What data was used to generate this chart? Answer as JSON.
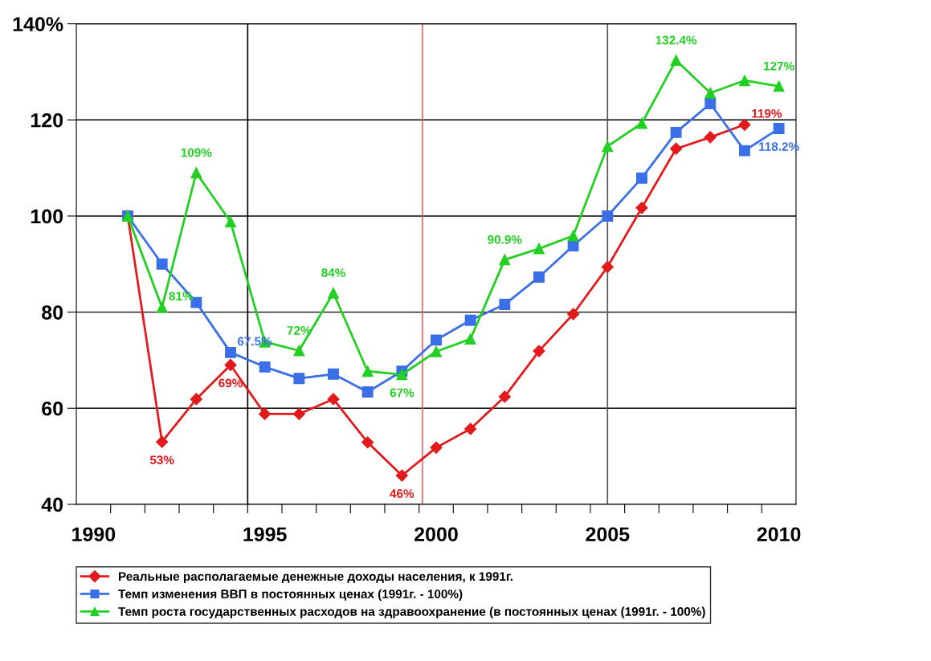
{
  "chart_data": {
    "type": "line",
    "x": [
      1991,
      1992,
      1993,
      1994,
      1995,
      1996,
      1997,
      1998,
      1999,
      2000,
      2001,
      2002,
      2003,
      2004,
      2005,
      2006,
      2007,
      2008,
      2009,
      2010
    ],
    "series": [
      {
        "name": "Реальные располагаемые денежные доходы населения, к 1991г.",
        "color": "#e31a1c",
        "marker": "diamond",
        "values": [
          100,
          53,
          61.9,
          69,
          58.8,
          58.8,
          61.9,
          52.9,
          46,
          51.8,
          55.7,
          62.4,
          71.9,
          79.6,
          89.4,
          101.7,
          114.0,
          116.4,
          119,
          null
        ]
      },
      {
        "name": "Темп изменения ВВП в постоянных ценах (1991г. - 100%)",
        "color": "#3a6fe8",
        "marker": "square",
        "values": [
          100,
          90.0,
          82.0,
          71.6,
          68.6,
          66.2,
          67.1,
          63.4,
          67.7,
          74.2,
          78.3,
          81.6,
          87.3,
          93.8,
          100.0,
          107.9,
          117.4,
          123.4,
          113.6,
          118.2
        ]
      },
      {
        "name": "Темп роста государственных расходов на здравоохранение (в постоянных ценах (1991г. - 100%)",
        "color": "#22d022",
        "marker": "triangle",
        "values": [
          100,
          81,
          109,
          98.8,
          73.8,
          72,
          84,
          67.7,
          67,
          71.8,
          74.4,
          90.9,
          93.2,
          95.9,
          114.5,
          119.3,
          132.4,
          125.6,
          128.2,
          127
        ]
      }
    ],
    "xlim": [
      1989.5,
      2010.5
    ],
    "xticks": [
      1990,
      1995,
      2000,
      2005,
      2010,
      {
        "value": 1990.5,
        "label": null
      },
      {
        "value": 1991.5,
        "label": null
      },
      {
        "value": 1992.5,
        "label": null
      },
      {
        "value": 1993.5,
        "label": null
      },
      {
        "value": 1994.5,
        "label": null
      },
      {
        "value": 1995.5,
        "label": null
      },
      {
        "value": 1996.5,
        "label": null
      },
      {
        "value": 1997.5,
        "label": null
      },
      {
        "value": 1998.5,
        "label": null
      },
      {
        "value": 1999.5,
        "label": null
      },
      {
        "value": 2000.5,
        "label": null
      },
      {
        "value": 2001.5,
        "label": null
      },
      {
        "value": 2002.5,
        "label": null
      },
      {
        "value": 2003.5,
        "label": null
      },
      {
        "value": 2004.5,
        "label": null
      },
      {
        "value": 2005.5,
        "label": null
      },
      {
        "value": 2006.5,
        "label": null
      },
      {
        "value": 2007.5,
        "label": null
      },
      {
        "value": 2008.5,
        "label": null
      },
      {
        "value": 2009.5,
        "label": null
      }
    ],
    "ylim": [
      40,
      140
    ],
    "yticks": [
      40,
      60,
      80,
      100,
      120,
      {
        "value": 140,
        "label": "140%"
      }
    ],
    "grid": "y",
    "legend": "bottom",
    "line_style": "solid",
    "ref_lines": [
      {
        "axis": "x",
        "value": 1994.5,
        "color": "#000000"
      },
      {
        "axis": "x",
        "value": 1999.6,
        "color": "#f06060"
      },
      {
        "axis": "x",
        "value": 2005,
        "color": "#555555"
      }
    ],
    "annotations": [
      {
        "text": "53%",
        "x": 1992,
        "y": 53
      },
      {
        "text": "69%",
        "x": 1994,
        "y": 69
      },
      {
        "text": "46%",
        "x": 1999,
        "y": 46
      },
      {
        "text": "119%",
        "x": 2009,
        "y": 119
      },
      {
        "text": "67.5%",
        "x": 1994,
        "y": 71.6
      },
      {
        "text": "118.2%",
        "x": 2010,
        "y": 118.2
      },
      {
        "text": "81%",
        "x": 1992,
        "y": 81
      },
      {
        "text": "109%",
        "x": 1993,
        "y": 109
      },
      {
        "text": "72%",
        "x": 1996,
        "y": 72
      },
      {
        "text": "84%",
        "x": 1997,
        "y": 84
      },
      {
        "text": "67%",
        "x": 1999,
        "y": 67
      },
      {
        "text": "90.9%",
        "x": 2002,
        "y": 90.9
      },
      {
        "text": "132.4%",
        "x": 2007,
        "y": 132.4
      },
      {
        "text": "127%",
        "x": 2010,
        "y": 127
      }
    ]
  }
}
